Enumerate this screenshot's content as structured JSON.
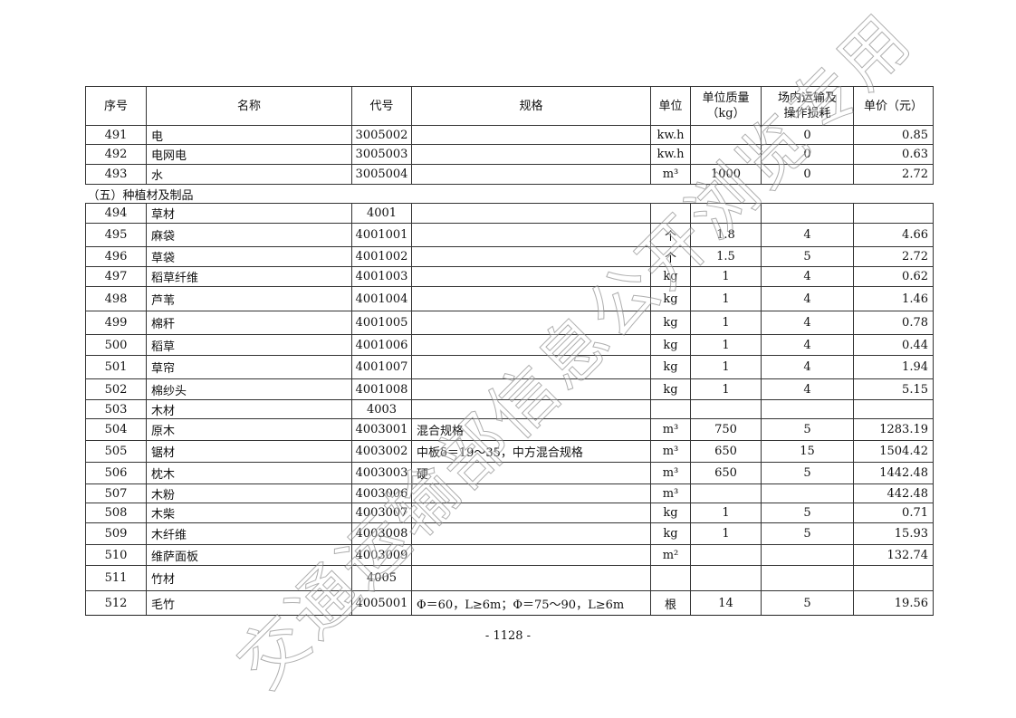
{
  "headers": [
    "序号",
    "名称",
    "代号",
    "规格",
    "单位",
    "单位质量\n（kg）",
    "场内运输及\n操作损耗",
    "单价（元）"
  ],
  "rows": [
    {
      "type": "row",
      "no": "491",
      "name": "电",
      "code": "3005002",
      "spec": "",
      "unit": "kw.h",
      "mass": "",
      "loss": "0",
      "price": "0.85"
    },
    {
      "type": "row",
      "no": "492",
      "name": "电网电",
      "code": "3005003",
      "spec": "",
      "unit": "kw.h",
      "mass": "",
      "loss": "0",
      "price": "0.63"
    },
    {
      "type": "row",
      "no": "493",
      "name": "水",
      "code": "3005004",
      "spec": "",
      "unit": "m³",
      "mass": "1000",
      "loss": "0",
      "price": "2.72"
    },
    {
      "type": "section",
      "title": "（五）种植材及制品"
    },
    {
      "type": "row",
      "no": "494",
      "name": "草材",
      "code": "4001",
      "spec": "",
      "unit": "",
      "mass": "",
      "loss": "",
      "price": ""
    },
    {
      "type": "row",
      "no": "495",
      "name": "麻袋",
      "code": "4001001",
      "spec": "",
      "unit": "个",
      "mass": "1.8",
      "loss": "4",
      "price": "4.66"
    },
    {
      "type": "row",
      "no": "496",
      "name": "草袋",
      "code": "4001002",
      "spec": "",
      "unit": "个",
      "mass": "1.5",
      "loss": "5",
      "price": "2.72"
    },
    {
      "type": "row",
      "no": "497",
      "name": "稻草纤维",
      "code": "4001003",
      "spec": "",
      "unit": "kg",
      "mass": "1",
      "loss": "4",
      "price": "0.62"
    },
    {
      "type": "row",
      "no": "498",
      "name": "芦苇",
      "code": "4001004",
      "spec": "",
      "unit": "kg",
      "mass": "1",
      "loss": "4",
      "price": "1.46"
    },
    {
      "type": "row",
      "no": "499",
      "name": "棉秆",
      "code": "4001005",
      "spec": "",
      "unit": "kg",
      "mass": "1",
      "loss": "4",
      "price": "0.78"
    },
    {
      "type": "row",
      "no": "500",
      "name": "稻草",
      "code": "4001006",
      "spec": "",
      "unit": "kg",
      "mass": "1",
      "loss": "4",
      "price": "0.44"
    },
    {
      "type": "row",
      "no": "501",
      "name": "草帘",
      "code": "4001007",
      "spec": "",
      "unit": "kg",
      "mass": "1",
      "loss": "4",
      "price": "1.94"
    },
    {
      "type": "row",
      "no": "502",
      "name": "棉纱头",
      "code": "4001008",
      "spec": "",
      "unit": "kg",
      "mass": "1",
      "loss": "4",
      "price": "5.15"
    },
    {
      "type": "row",
      "no": "503",
      "name": "木材",
      "code": "4003",
      "spec": "",
      "unit": "",
      "mass": "",
      "loss": "",
      "price": ""
    },
    {
      "type": "row",
      "no": "504",
      "name": "原木",
      "code": "4003001",
      "spec": "混合规格",
      "unit": "m³",
      "mass": "750",
      "loss": "5",
      "price": "1283.19"
    },
    {
      "type": "row",
      "no": "505",
      "name": "锯材",
      "code": "4003002",
      "spec": "中板δ＝19～35，中方混合规格",
      "unit": "m³",
      "mass": "650",
      "loss": "15",
      "price": "1504.42"
    },
    {
      "type": "row",
      "no": "506",
      "name": "枕木",
      "code": "4003003",
      "spec": "硬",
      "unit": "m³",
      "mass": "650",
      "loss": "5",
      "price": "1442.48"
    },
    {
      "type": "row",
      "no": "507",
      "name": "木粉",
      "code": "4003006",
      "spec": "",
      "unit": "m³",
      "mass": "",
      "loss": "",
      "price": "442.48"
    },
    {
      "type": "row",
      "no": "508",
      "name": "木柴",
      "code": "4003007",
      "spec": "",
      "unit": "kg",
      "mass": "1",
      "loss": "5",
      "price": "0.71"
    },
    {
      "type": "row",
      "no": "509",
      "name": "木纤维",
      "code": "4003008",
      "spec": "",
      "unit": "kg",
      "mass": "1",
      "loss": "5",
      "price": "15.93"
    },
    {
      "type": "row",
      "no": "510",
      "name": "维萨面板",
      "code": "4003009",
      "spec": "",
      "unit": "m²",
      "mass": "",
      "loss": "",
      "price": "132.74"
    },
    {
      "type": "row",
      "no": "511",
      "name": "竹材",
      "code": "4005",
      "spec": "",
      "unit": "",
      "mass": "",
      "loss": "",
      "price": ""
    },
    {
      "type": "row",
      "no": "512",
      "name": "毛竹",
      "code": "4005001",
      "spec": "Φ＝60，L≥6m；Φ＝75～90，L≥6m",
      "unit": "根",
      "mass": "14",
      "loss": "5",
      "price": "19.56"
    }
  ],
  "page_number": "- 1128 -",
  "watermark": "交通运输部信息公开浏览专用"
}
